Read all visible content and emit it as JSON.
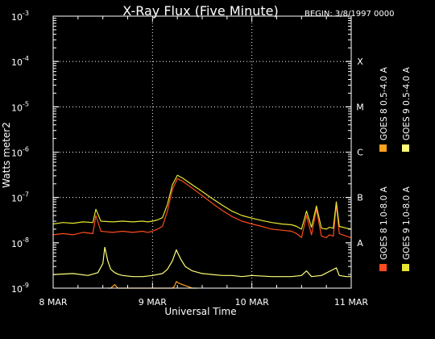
{
  "chart_data": {
    "type": "line",
    "title": "X-Ray Flux (Five Minute)",
    "subtitle": "BEGIN: 3/8/1997 0000",
    "xlabel": "Universal Time",
    "ylabel": "Watts meter2",
    "y_scale": "log",
    "ylim": [
      1e-09,
      0.001
    ],
    "y_ticks": [
      {
        "base": "10",
        "exp": "-3",
        "value": 0.001
      },
      {
        "base": "10",
        "exp": "-4",
        "value": 0.0001
      },
      {
        "base": "10",
        "exp": "-5",
        "value": 1e-05
      },
      {
        "base": "10",
        "exp": "-6",
        "value": 1e-06
      },
      {
        "base": "10",
        "exp": "-7",
        "value": 1e-07
      },
      {
        "base": "10",
        "exp": "-8",
        "value": 1e-08
      },
      {
        "base": "10",
        "exp": "-9",
        "value": 1e-09
      }
    ],
    "x_ticks": [
      {
        "label": "8 MAR",
        "day": 0
      },
      {
        "label": "9 MAR",
        "day": 1
      },
      {
        "label": "10 MAR",
        "day": 2
      },
      {
        "label": "11 MAR",
        "day": 3
      }
    ],
    "xlim_days": [
      0,
      3
    ],
    "flare_classes": [
      {
        "label": "X",
        "value": 0.0001
      },
      {
        "label": "M",
        "value": 1e-05
      },
      {
        "label": "C",
        "value": 1e-06
      },
      {
        "label": "B",
        "value": 1e-07
      },
      {
        "label": "A",
        "value": 1e-08
      }
    ],
    "grid": "dotted at 1e-4..1e-7 and each day",
    "series": [
      {
        "name": "GOES 8 1.0-8.0 A",
        "color": "#ff4b1e",
        "x_days": [
          0.0,
          0.1,
          0.2,
          0.3,
          0.4,
          0.43,
          0.48,
          0.6,
          0.7,
          0.8,
          0.9,
          0.95,
          1.0,
          1.05,
          1.1,
          1.15,
          1.2,
          1.25,
          1.3,
          1.4,
          1.5,
          1.6,
          1.7,
          1.8,
          1.9,
          2.0,
          2.1,
          2.2,
          2.3,
          2.4,
          2.45,
          2.5,
          2.55,
          2.6,
          2.65,
          2.7,
          2.75,
          2.78,
          2.82,
          2.85,
          2.88,
          2.95,
          3.0
        ],
        "values": [
          1.5e-08,
          1.6e-08,
          1.5e-08,
          1.7e-08,
          1.6e-08,
          4e-08,
          1.8e-08,
          1.7e-08,
          1.8e-08,
          1.7e-08,
          1.8e-08,
          1.7e-08,
          1.8e-08,
          2e-08,
          2.3e-08,
          5e-08,
          1.5e-07,
          2.6e-07,
          2.3e-07,
          1.6e-07,
          1.1e-07,
          7.5e-08,
          5.2e-08,
          3.8e-08,
          3e-08,
          2.6e-08,
          2.3e-08,
          2e-08,
          1.9e-08,
          1.8e-08,
          1.6e-08,
          1.3e-08,
          4e-08,
          1.5e-08,
          5.5e-08,
          1.4e-08,
          1.3e-08,
          1.5e-08,
          1.4e-08,
          7e-08,
          1.6e-08,
          1.4e-08,
          1.3e-08
        ]
      },
      {
        "name": "GOES 8 0.5-4.0 A",
        "color": "#ffa01e",
        "x_days": [
          0.55,
          0.58,
          0.62,
          0.65,
          1.2,
          1.22,
          1.24,
          1.26,
          1.3,
          1.35,
          1.4,
          1.45
        ],
        "values": [
          1e-09,
          1e-09,
          1.2e-09,
          1e-09,
          1e-09,
          1.1e-09,
          1.4e-09,
          1.3e-09,
          1.2e-09,
          1.1e-09,
          1e-09,
          1e-09
        ]
      },
      {
        "name": "GOES 9 1.0-8.0 A",
        "color": "#e6e632",
        "x_days": [
          0.0,
          0.1,
          0.2,
          0.3,
          0.4,
          0.43,
          0.48,
          0.6,
          0.7,
          0.8,
          0.9,
          0.95,
          1.0,
          1.05,
          1.1,
          1.15,
          1.2,
          1.25,
          1.3,
          1.4,
          1.5,
          1.6,
          1.7,
          1.8,
          1.9,
          2.0,
          2.1,
          2.2,
          2.3,
          2.4,
          2.45,
          2.5,
          2.55,
          2.6,
          2.65,
          2.7,
          2.75,
          2.78,
          2.82,
          2.85,
          2.88,
          2.95,
          3.0
        ],
        "values": [
          2.6e-08,
          2.8e-08,
          2.7e-08,
          2.9e-08,
          2.8e-08,
          5.5e-08,
          3e-08,
          2.9e-08,
          3e-08,
          2.9e-08,
          3e-08,
          2.9e-08,
          3e-08,
          3.2e-08,
          3.6e-08,
          7e-08,
          1.9e-07,
          3.1e-07,
          2.7e-07,
          1.9e-07,
          1.35e-07,
          9.5e-08,
          6.8e-08,
          5e-08,
          4e-08,
          3.5e-08,
          3.1e-08,
          2.8e-08,
          2.6e-08,
          2.5e-08,
          2.3e-08,
          2e-08,
          5e-08,
          2.2e-08,
          6.5e-08,
          2.1e-08,
          2e-08,
          2.2e-08,
          2.1e-08,
          8e-08,
          2.3e-08,
          2.1e-08,
          2e-08
        ]
      },
      {
        "name": "GOES 9 0.5-4.0 A",
        "color": "#ffff78",
        "x_days": [
          0.0,
          0.2,
          0.35,
          0.45,
          0.5,
          0.52,
          0.55,
          0.58,
          0.62,
          0.66,
          0.7,
          0.8,
          0.9,
          1.0,
          1.1,
          1.15,
          1.2,
          1.24,
          1.28,
          1.33,
          1.4,
          1.5,
          1.6,
          1.7,
          1.8,
          1.9,
          2.0,
          2.2,
          2.4,
          2.5,
          2.55,
          2.6,
          2.7,
          2.85,
          2.88,
          2.95,
          3.0
        ],
        "values": [
          2e-09,
          2.1e-09,
          1.9e-09,
          2.2e-09,
          3.5e-09,
          8e-09,
          4e-09,
          2.6e-09,
          2.2e-09,
          2e-09,
          1.9e-09,
          1.8e-09,
          1.8e-09,
          1.9e-09,
          2.1e-09,
          2.6e-09,
          4e-09,
          7e-09,
          4.5e-09,
          3e-09,
          2.4e-09,
          2.1e-09,
          2e-09,
          1.9e-09,
          1.9e-09,
          1.8e-09,
          1.9e-09,
          1.8e-09,
          1.8e-09,
          1.9e-09,
          2.4e-09,
          1.8e-09,
          1.9e-09,
          2.8e-09,
          1.9e-09,
          1.8e-09,
          1.8e-09
        ]
      }
    ],
    "legend": [
      {
        "label": "GOES 8 1.0-8.0 A",
        "color": "#ff4b1e"
      },
      {
        "label": "GOES 8 0.5-4.0 A",
        "color": "#ffa01e"
      },
      {
        "label": "GOES 9 1.0-8.0 A",
        "color": "#e6e632"
      },
      {
        "label": "GOES 9 0.5-4.0 A",
        "color": "#ffff78"
      }
    ]
  }
}
